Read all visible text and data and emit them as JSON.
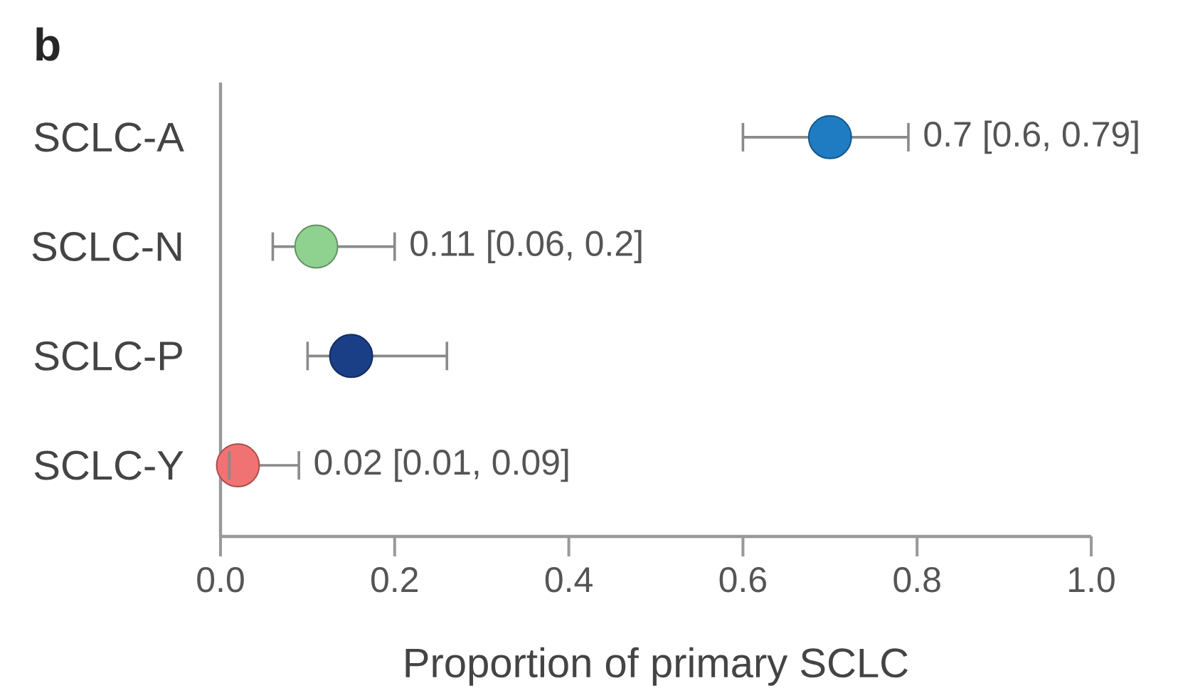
{
  "chart_data": {
    "type": "scatter",
    "orientation": "horizontal",
    "title": "b",
    "xlabel": "Proportion of primary SCLC",
    "categories": [
      "SCLC-A",
      "SCLC-N",
      "SCLC-P",
      "SCLC-Y"
    ],
    "values": [
      0.7,
      0.11,
      0.15,
      0.02
    ],
    "errors": [
      [
        0.6,
        0.79
      ],
      [
        0.06,
        0.2
      ],
      [
        0.1,
        0.26
      ],
      [
        0.01,
        0.09
      ]
    ],
    "colors": [
      "#1f7cc2",
      "#8fd18f",
      "#1b3f87",
      "#f07272"
    ],
    "value_labels": [
      "0.7 [0.6, 0.79]",
      "0.11 [0.06, 0.2]",
      null,
      "0.02 [0.01, 0.09]"
    ],
    "marker": "circle",
    "xlim": [
      0,
      1
    ],
    "xticks": [
      {
        "value": 0,
        "label": "0.0"
      },
      0.2,
      0.4,
      0.6,
      0.8,
      {
        "value": 1,
        "label": "1.0"
      }
    ]
  }
}
